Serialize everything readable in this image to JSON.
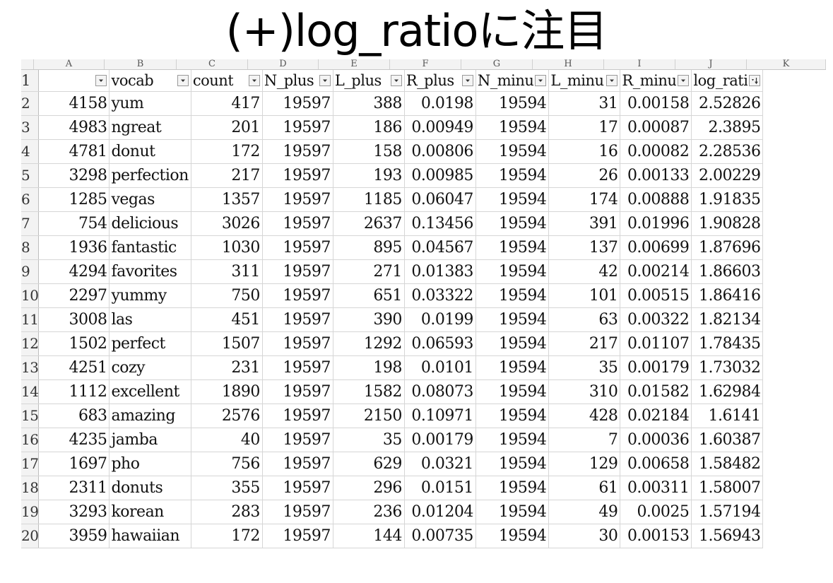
{
  "title": "(+)log_ratioに注目",
  "column_letters": [
    "A",
    "B",
    "C",
    "D",
    "E",
    "F",
    "G",
    "H",
    "I",
    "J",
    "K"
  ],
  "headers": [
    "",
    "vocab",
    "count",
    "N_plus",
    "L_plus",
    "R_plus",
    "N_minu",
    "L_minu",
    "R_minu",
    "log_rati"
  ],
  "row_numbers": [
    "1",
    "2",
    "3",
    "4",
    "5",
    "6",
    "7",
    "8",
    "9",
    "10",
    "11",
    "12",
    "13",
    "14",
    "15",
    "16",
    "17",
    "18",
    "19",
    "20"
  ],
  "rows": [
    [
      "4158",
      "yum",
      "417",
      "19597",
      "388",
      "0.0198",
      "19594",
      "31",
      "0.00158",
      "2.52826"
    ],
    [
      "4983",
      "ngreat",
      "201",
      "19597",
      "186",
      "0.00949",
      "19594",
      "17",
      "0.00087",
      "2.3895"
    ],
    [
      "4781",
      "donut",
      "172",
      "19597",
      "158",
      "0.00806",
      "19594",
      "16",
      "0.00082",
      "2.28536"
    ],
    [
      "3298",
      "perfection",
      "217",
      "19597",
      "193",
      "0.00985",
      "19594",
      "26",
      "0.00133",
      "2.00229"
    ],
    [
      "1285",
      "vegas",
      "1357",
      "19597",
      "1185",
      "0.06047",
      "19594",
      "174",
      "0.00888",
      "1.91835"
    ],
    [
      "754",
      "delicious",
      "3026",
      "19597",
      "2637",
      "0.13456",
      "19594",
      "391",
      "0.01996",
      "1.90828"
    ],
    [
      "1936",
      "fantastic",
      "1030",
      "19597",
      "895",
      "0.04567",
      "19594",
      "137",
      "0.00699",
      "1.87696"
    ],
    [
      "4294",
      "favorites",
      "311",
      "19597",
      "271",
      "0.01383",
      "19594",
      "42",
      "0.00214",
      "1.86603"
    ],
    [
      "2297",
      "yummy",
      "750",
      "19597",
      "651",
      "0.03322",
      "19594",
      "101",
      "0.00515",
      "1.86416"
    ],
    [
      "3008",
      "las",
      "451",
      "19597",
      "390",
      "0.0199",
      "19594",
      "63",
      "0.00322",
      "1.82134"
    ],
    [
      "1502",
      "perfect",
      "1507",
      "19597",
      "1292",
      "0.06593",
      "19594",
      "217",
      "0.01107",
      "1.78435"
    ],
    [
      "4251",
      "cozy",
      "231",
      "19597",
      "198",
      "0.0101",
      "19594",
      "35",
      "0.00179",
      "1.73032"
    ],
    [
      "1112",
      "excellent",
      "1890",
      "19597",
      "1582",
      "0.08073",
      "19594",
      "310",
      "0.01582",
      "1.62984"
    ],
    [
      "683",
      "amazing",
      "2576",
      "19597",
      "2150",
      "0.10971",
      "19594",
      "428",
      "0.02184",
      "1.6141"
    ],
    [
      "4235",
      "jamba",
      "40",
      "19597",
      "35",
      "0.00179",
      "19594",
      "7",
      "0.00036",
      "1.60387"
    ],
    [
      "1697",
      "pho",
      "756",
      "19597",
      "629",
      "0.0321",
      "19594",
      "129",
      "0.00658",
      "1.58482"
    ],
    [
      "2311",
      "donuts",
      "355",
      "19597",
      "296",
      "0.0151",
      "19594",
      "61",
      "0.00311",
      "1.58007"
    ],
    [
      "3293",
      "korean",
      "283",
      "19597",
      "236",
      "0.01204",
      "19594",
      "49",
      "0.0025",
      "1.57194"
    ],
    [
      "3959",
      "hawaiian",
      "172",
      "19597",
      "144",
      "0.00735",
      "19594",
      "30",
      "0.00153",
      "1.56943"
    ]
  ]
}
